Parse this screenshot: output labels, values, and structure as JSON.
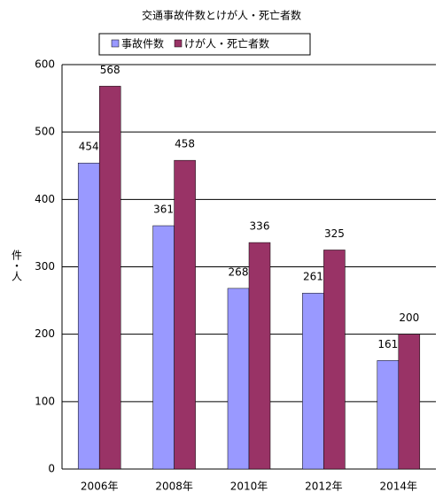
{
  "chart_data": {
    "type": "bar",
    "title": "交通事故件数とけが人・死亡者数",
    "y_label": "件・人",
    "categories": [
      "2006年",
      "2008年",
      "2010年",
      "2012年",
      "2014年"
    ],
    "series": [
      {
        "name": "事故件数",
        "color": "#9999ff",
        "values": [
          454,
          361,
          268,
          261,
          161
        ]
      },
      {
        "name": "けが人・死亡者数",
        "color": "#993366",
        "values": [
          568,
          458,
          336,
          325,
          200
        ]
      }
    ],
    "ylim": [
      0,
      600
    ],
    "yticks": [
      0,
      100,
      200,
      300,
      400,
      500,
      600
    ],
    "grid": true
  }
}
